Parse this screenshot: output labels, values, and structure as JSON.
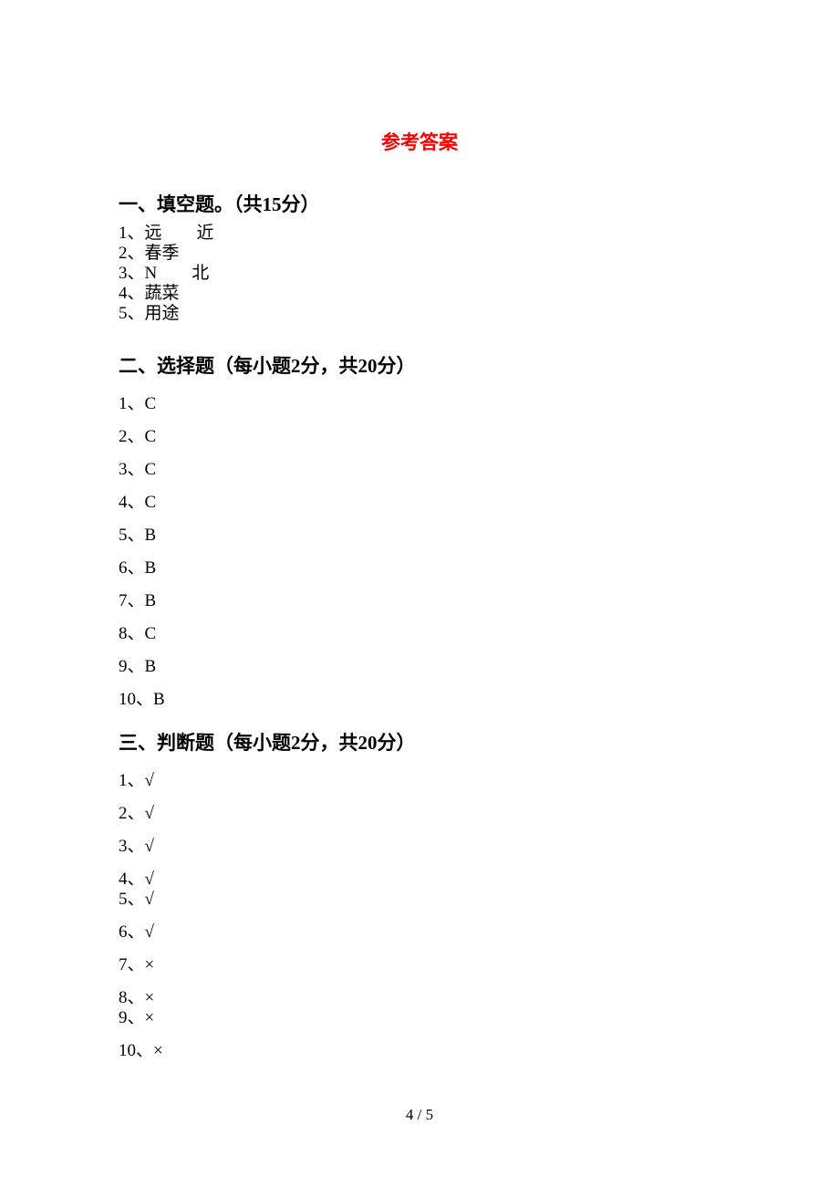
{
  "title": "参考答案",
  "sections": {
    "s1": {
      "heading": "一、填空题。（共15分）",
      "items": {
        "i1": "1、远　　近",
        "i2": "2、春季",
        "i3": "3、N　　北",
        "i4": "4、蔬菜",
        "i5": "5、用途"
      }
    },
    "s2": {
      "heading": "二、选择题（每小题2分，共20分）",
      "items": {
        "i1": "1、C",
        "i2": "2、C",
        "i3": "3、C",
        "i4": "4、C",
        "i5": "5、B",
        "i6": "6、B",
        "i7": "7、B",
        "i8": "8、C",
        "i9": "9、B",
        "i10": "10、B"
      }
    },
    "s3": {
      "heading": "三、判断题（每小题2分，共20分）",
      "items": {
        "i1": "1、√",
        "i2": "2、√",
        "i3": "3、√",
        "i4": "4、√",
        "i5": "5、√",
        "i6": "6、√",
        "i7": "7、×",
        "i8": "8、×",
        "i9": "9、×",
        "i10": "10、×"
      }
    }
  },
  "pageNumber": "4 / 5"
}
